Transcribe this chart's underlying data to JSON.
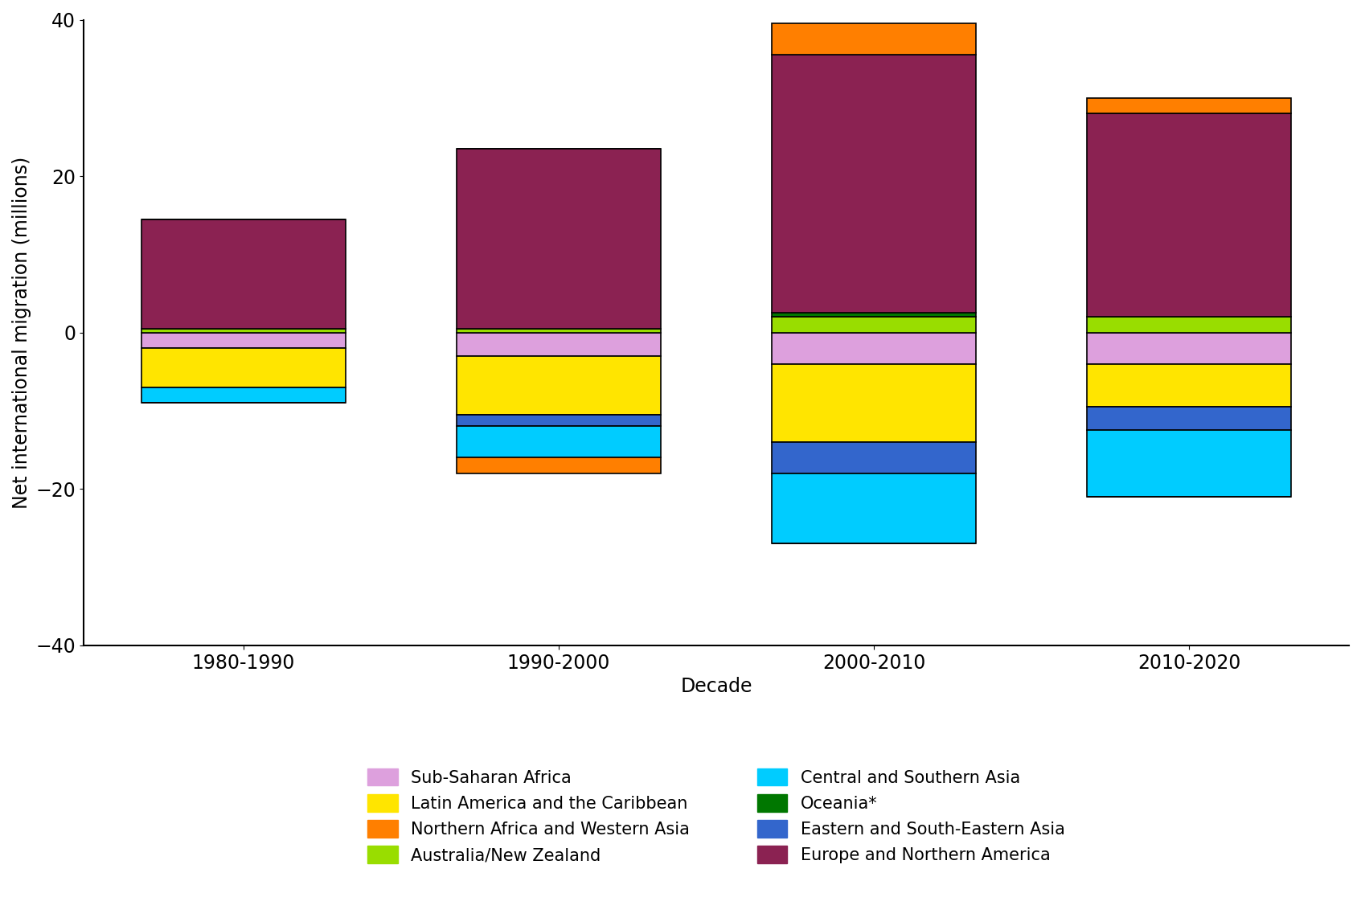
{
  "categories": [
    "1980-1990",
    "1990-2000",
    "2000-2010",
    "2010-2020"
  ],
  "negative_stack_order": [
    {
      "name": "Sub-Saharan Africa",
      "color": "#DDA0DD",
      "values": [
        -2.0,
        -3.0,
        -4.0,
        -4.0
      ]
    },
    {
      "name": "Latin America and the Caribbean",
      "color": "#FFE500",
      "values": [
        -5.0,
        -7.5,
        -10.0,
        -5.5
      ]
    },
    {
      "name": "Eastern and South-Eastern Asia",
      "color": "#3366CC",
      "values": [
        0.0,
        -1.5,
        -4.0,
        -3.0
      ]
    },
    {
      "name": "Central and Southern Asia",
      "color": "#00CCFF",
      "values": [
        -2.0,
        -4.0,
        -9.0,
        -8.5
      ]
    },
    {
      "name": "Northern Africa and Western Asia neg",
      "color": "#FF7F00",
      "values": [
        0.0,
        -2.0,
        0.0,
        0.0
      ]
    }
  ],
  "positive_stack_order": [
    {
      "name": "Australia/New Zealand",
      "color": "#99DD00",
      "values": [
        0.5,
        0.5,
        2.0,
        2.0
      ]
    },
    {
      "name": "Oceania*",
      "color": "#007700",
      "values": [
        0.0,
        0.0,
        0.5,
        0.0
      ]
    },
    {
      "name": "Europe and Northern America",
      "color": "#8B2252",
      "values": [
        14.0,
        23.0,
        33.0,
        26.0
      ]
    },
    {
      "name": "Northern Africa and Western Asia",
      "color": "#FF7F00",
      "values": [
        0.0,
        0.0,
        4.0,
        2.0
      ]
    }
  ],
  "ylabel": "Net international migration (millions)",
  "xlabel": "Decade",
  "ylim": [
    -40,
    40
  ],
  "yticks": [
    -40,
    -20,
    0,
    20,
    40
  ],
  "background_color": "#FFFFFF",
  "bar_width": 0.65,
  "edge_color": "black",
  "edge_width": 1.2
}
